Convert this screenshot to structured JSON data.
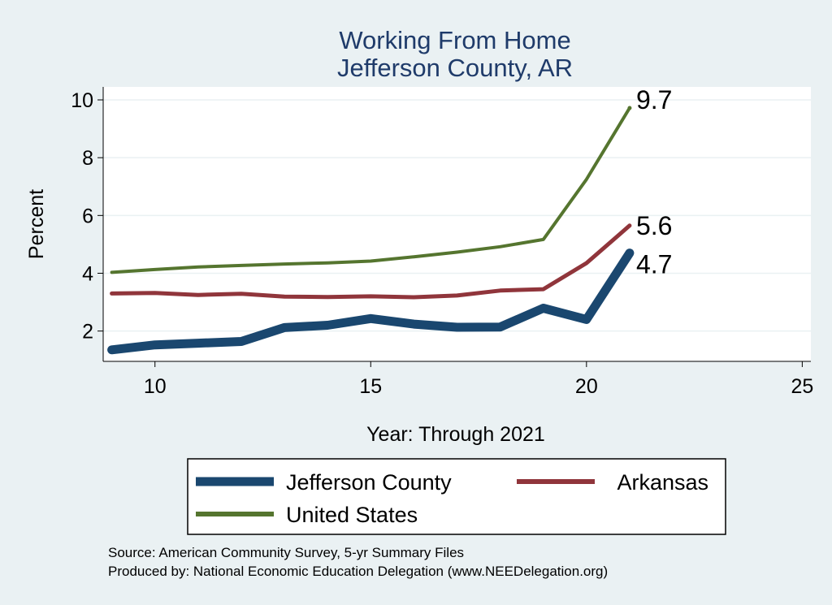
{
  "chart_data": {
    "type": "line",
    "title": [
      "Working From Home",
      "Jefferson County, AR"
    ],
    "xlabel": "Year: Through 2021",
    "ylabel": "Percent",
    "xlim": [
      8.8,
      25.2
    ],
    "ylim": [
      0.95,
      10.45
    ],
    "xticks": [
      10,
      15,
      20,
      25
    ],
    "yticks": [
      2,
      4,
      6,
      8,
      10
    ],
    "grid": true,
    "legend_position": "bottom",
    "series": [
      {
        "name": "Jefferson County",
        "color": "#1a476f",
        "x": [
          9,
          10,
          11,
          12,
          13,
          14,
          15,
          16,
          17,
          18,
          19,
          20,
          21
        ],
        "values": [
          1.35,
          1.52,
          1.58,
          1.64,
          2.12,
          2.2,
          2.43,
          2.24,
          2.13,
          2.14,
          2.79,
          2.4,
          4.7
        ],
        "end_label": "4.7"
      },
      {
        "name": "Arkansas",
        "color": "#90353b",
        "x": [
          9,
          10,
          11,
          12,
          13,
          14,
          15,
          16,
          17,
          18,
          19,
          20,
          21
        ],
        "values": [
          3.3,
          3.32,
          3.25,
          3.29,
          3.19,
          3.18,
          3.2,
          3.17,
          3.23,
          3.4,
          3.45,
          4.35,
          5.65
        ],
        "end_label": "5.6"
      },
      {
        "name": "United States",
        "color": "#55752f",
        "x": [
          9,
          10,
          11,
          12,
          13,
          14,
          15,
          16,
          17,
          18,
          19,
          20,
          21
        ],
        "values": [
          4.03,
          4.13,
          4.22,
          4.27,
          4.32,
          4.36,
          4.42,
          4.57,
          4.73,
          4.92,
          5.17,
          7.25,
          9.72
        ],
        "end_label": "9.7"
      }
    ],
    "notes": [
      "Source: American Community Survey, 5-yr Summary Files",
      "Produced by: National Economic Education Delegation (www.NEEDelegation.org)"
    ]
  }
}
